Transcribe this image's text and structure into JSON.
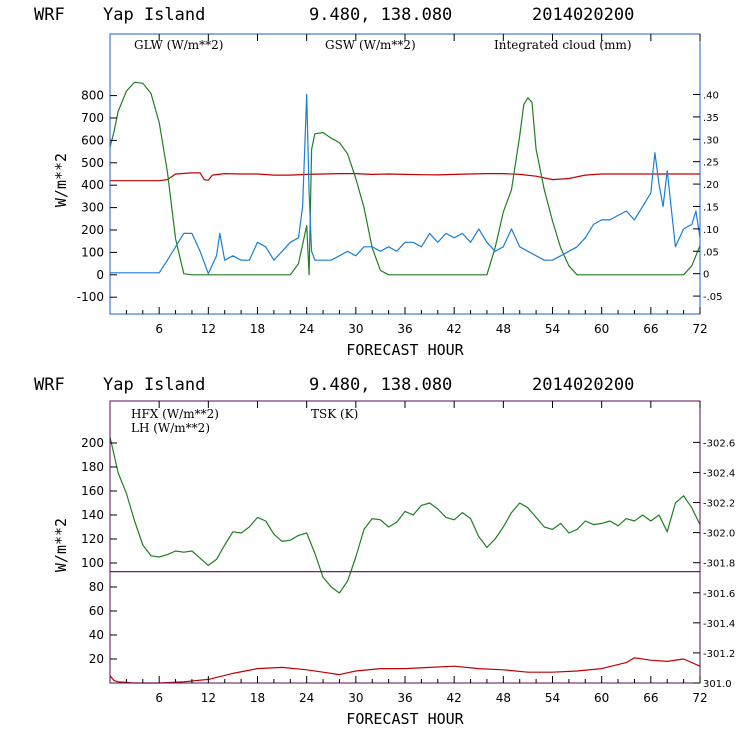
{
  "colors": {
    "red": "#c00000",
    "green": "#208020",
    "blue": "#1a7fd4",
    "purple": "#5a0a5a",
    "axis": "#000000"
  },
  "chart_data": [
    {
      "type": "line",
      "title": {
        "model": "WRF",
        "location": "Yap Island",
        "coords": "9.480, 138.080",
        "date": "2014020200"
      },
      "xlabel": "FORECAST HOUR",
      "ylabel": "W/m**2",
      "xlim": [
        0,
        72
      ],
      "ylim": [
        -175,
        1075
      ],
      "xticks": [
        "6",
        "12",
        "18",
        "24",
        "30",
        "36",
        "42",
        "48",
        "54",
        "60",
        "66",
        "72"
      ],
      "yticks": [
        "-100",
        "0",
        "100",
        "200",
        "300",
        "400",
        "500",
        "600",
        "700",
        "800"
      ],
      "y2lim": [
        -0.09,
        0.535
      ],
      "y2ticks": [
        "-.05",
        "0",
        ".05",
        ".10",
        ".15",
        ".20",
        ".25",
        ".30",
        ".35",
        ".40"
      ],
      "series": [
        {
          "name": "GLW (W/m**2)",
          "color": "red",
          "axis": "left",
          "x": [
            0,
            3,
            6,
            7,
            8,
            10,
            11,
            11.5,
            12,
            12.5,
            14,
            16,
            18,
            20,
            22,
            24,
            26,
            28,
            30,
            32,
            34,
            36,
            38,
            40,
            42,
            44,
            46,
            48,
            50,
            52,
            54,
            56,
            58,
            60,
            62,
            64,
            66,
            68,
            70,
            72
          ],
          "y": [
            420,
            420,
            420,
            425,
            450,
            455,
            455,
            425,
            422,
            445,
            452,
            450,
            450,
            445,
            445,
            448,
            450,
            452,
            452,
            448,
            450,
            448,
            447,
            446,
            448,
            450,
            452,
            452,
            448,
            440,
            425,
            430,
            445,
            450,
            450,
            450,
            450,
            450,
            450,
            450
          ]
        },
        {
          "name": "GSW (W/m**2)",
          "color": "green",
          "axis": "left",
          "x": [
            0,
            0.5,
            1,
            2,
            3,
            4,
            5,
            6,
            7,
            8,
            9,
            10,
            11,
            12,
            22,
            23,
            24,
            24.3,
            24.6,
            25,
            26,
            27,
            28,
            29,
            30,
            31,
            32,
            33,
            34,
            46,
            47,
            48,
            49,
            50,
            50.5,
            51,
            51.5,
            52,
            53,
            54,
            55,
            56,
            57,
            58,
            70,
            71,
            72
          ],
          "y": [
            570,
            640,
            730,
            820,
            860,
            855,
            810,
            680,
            460,
            160,
            5,
            0,
            0,
            0,
            0,
            50,
            220,
            0,
            560,
            630,
            635,
            610,
            590,
            540,
            430,
            300,
            120,
            20,
            0,
            0,
            120,
            280,
            380,
            620,
            760,
            790,
            770,
            560,
            380,
            240,
            120,
            40,
            0,
            0,
            0,
            40,
            130
          ]
        },
        {
          "name": "Integrated cloud (mm)",
          "color": "blue",
          "axis": "right",
          "x": [
            0,
            3,
            6,
            7,
            8,
            9,
            10,
            11,
            12,
            13,
            13.4,
            14,
            15,
            16,
            17,
            18,
            19,
            20,
            21,
            22,
            23,
            23.5,
            24,
            24.3,
            24.6,
            25,
            26,
            27,
            28,
            29,
            30,
            31,
            32,
            33,
            34,
            35,
            36,
            37,
            38,
            39,
            40,
            41,
            42,
            43,
            44,
            45,
            46,
            47,
            48,
            49,
            50,
            51,
            52,
            53,
            54,
            55,
            56,
            57,
            58,
            59,
            60,
            61,
            62,
            63,
            64,
            65,
            66,
            66.5,
            67,
            67.5,
            68,
            69,
            70,
            71,
            71.5,
            72
          ],
          "y": [
            0.002,
            0.002,
            0.002,
            0.03,
            0.06,
            0.09,
            0.09,
            0.05,
            0.0,
            0.04,
            0.09,
            0.03,
            0.04,
            0.03,
            0.03,
            0.07,
            0.06,
            0.03,
            0.05,
            0.07,
            0.08,
            0.15,
            0.4,
            0.18,
            0.05,
            0.03,
            0.03,
            0.03,
            0.04,
            0.05,
            0.04,
            0.06,
            0.06,
            0.05,
            0.06,
            0.05,
            0.07,
            0.07,
            0.06,
            0.09,
            0.07,
            0.09,
            0.08,
            0.09,
            0.07,
            0.1,
            0.07,
            0.05,
            0.06,
            0.1,
            0.06,
            0.05,
            0.04,
            0.03,
            0.03,
            0.04,
            0.05,
            0.06,
            0.08,
            0.11,
            0.12,
            0.12,
            0.13,
            0.14,
            0.12,
            0.15,
            0.18,
            0.27,
            0.2,
            0.15,
            0.23,
            0.06,
            0.1,
            0.11,
            0.14,
            0.08
          ]
        }
      ]
    },
    {
      "type": "line",
      "title": {
        "model": "WRF",
        "location": "Yap Island",
        "coords": "9.480, 138.080",
        "date": "2014020200"
      },
      "xlabel": "FORECAST HOUR",
      "ylabel": "W/m**2",
      "xlim": [
        0,
        72
      ],
      "ylim": [
        0,
        235
      ],
      "xticks": [
        "6",
        "12",
        "18",
        "24",
        "30",
        "36",
        "42",
        "48",
        "54",
        "60",
        "66",
        "72"
      ],
      "yticks": [
        "20",
        "40",
        "60",
        "80",
        "100",
        "120",
        "140",
        "160",
        "180",
        "200"
      ],
      "y2lim": [
        301.0,
        302.875
      ],
      "y2ticks": [
        "301.0",
        "-301.2",
        "-301.4",
        "-301.6",
        "-301.8",
        "-302.0",
        "-302.2",
        "-302.4",
        "-302.6"
      ],
      "series": [
        {
          "name": "HFX (W/m**2)",
          "color": "red",
          "axis": "left",
          "x": [
            0,
            0.5,
            1,
            3,
            6,
            9,
            12,
            15,
            18,
            21,
            24,
            26,
            28,
            30,
            33,
            36,
            39,
            42,
            45,
            48,
            51,
            54,
            57,
            60,
            63,
            64,
            66,
            68,
            70,
            72
          ],
          "y": [
            6,
            2,
            1,
            0,
            0,
            1,
            3,
            8,
            12,
            13,
            11,
            9,
            7,
            10,
            12,
            12,
            13,
            14,
            12,
            11,
            9,
            9,
            10,
            12,
            17,
            21,
            19,
            18,
            20,
            14
          ]
        },
        {
          "name": "LH (W/m**2)",
          "color": "green",
          "axis": "left",
          "x": [
            0,
            1,
            2,
            3,
            4,
            5,
            6,
            7,
            8,
            9,
            10,
            11,
            12,
            13,
            14,
            15,
            16,
            17,
            18,
            19,
            20,
            21,
            22,
            23,
            24,
            25,
            26,
            27,
            28,
            29,
            30,
            31,
            32,
            33,
            34,
            35,
            36,
            37,
            38,
            39,
            40,
            41,
            42,
            43,
            44,
            45,
            46,
            47,
            48,
            49,
            50,
            51,
            52,
            53,
            54,
            55,
            56,
            57,
            58,
            59,
            60,
            61,
            62,
            63,
            64,
            65,
            66,
            67,
            68,
            69,
            70,
            71,
            72
          ],
          "y": [
            205,
            175,
            158,
            135,
            115,
            106,
            105,
            107,
            110,
            109,
            110,
            104,
            98,
            103,
            115,
            126,
            125,
            130,
            138,
            135,
            124,
            118,
            119,
            123,
            125,
            108,
            88,
            80,
            75,
            85,
            105,
            128,
            137,
            136,
            130,
            134,
            143,
            140,
            148,
            150,
            145,
            138,
            136,
            142,
            137,
            122,
            113,
            120,
            130,
            142,
            150,
            146,
            138,
            130,
            128,
            133,
            125,
            128,
            135,
            132,
            133,
            135,
            131,
            137,
            135,
            140,
            135,
            140,
            126,
            150,
            156,
            146,
            132
          ]
        },
        {
          "name": "TSK (K)",
          "color": "purple",
          "axis": "right",
          "x": [
            0,
            72
          ],
          "y": [
            301.74,
            301.74
          ]
        }
      ]
    }
  ]
}
